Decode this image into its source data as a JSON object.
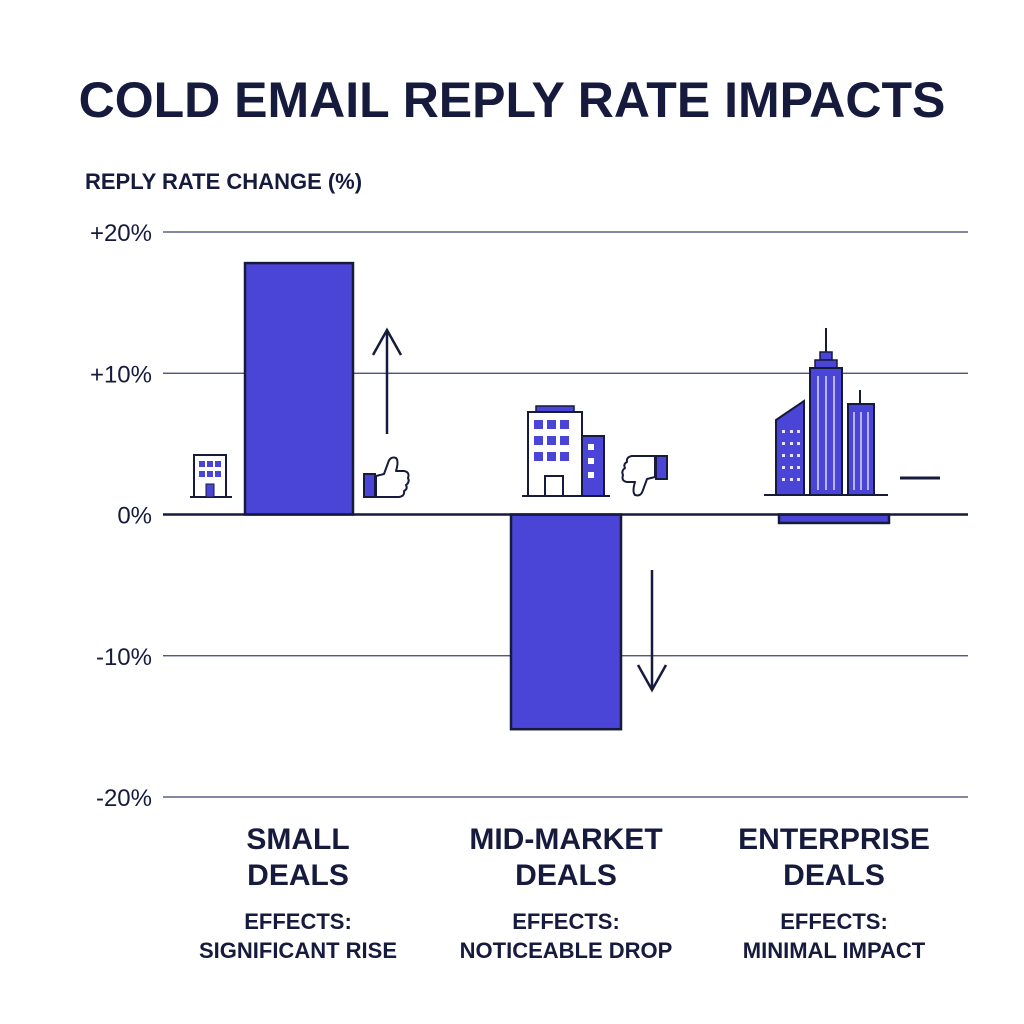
{
  "chart_data": {
    "type": "bar",
    "title": "COLD EMAIL REPLY RATE IMPACTS",
    "ylabel": "REPLY RATE CHANGE (%)",
    "xlabel": "",
    "ylim": [
      -20,
      20
    ],
    "yticks": [
      20,
      10,
      0,
      -10,
      -20
    ],
    "ytick_labels": [
      "+20%",
      "+10%",
      "0%",
      "-10%",
      "-20%"
    ],
    "grid": true,
    "legend": "none",
    "categories": [
      {
        "line1": "SMALL",
        "line2": "DEALS",
        "effect_line1": "EFFECTS:",
        "effect_line2": "SIGNIFICANT RISE",
        "icon": "small-building-icon",
        "indicator": "thumbs-up-icon",
        "arrow": "up"
      },
      {
        "line1": "MID-MARKET",
        "line2": "DEALS",
        "effect_line1": "EFFECTS:",
        "effect_line2": "NOTICEABLE DROP",
        "icon": "office-building-icon",
        "indicator": "thumbs-down-icon",
        "arrow": "down"
      },
      {
        "line1": "ENTERPRISE",
        "line2": "DEALS",
        "effect_line1": "EFFECTS:",
        "effect_line2": "MINIMAL IMPACT",
        "icon": "skyscraper-icon",
        "indicator": "dash-icon",
        "arrow": "none"
      }
    ],
    "values": [
      17.8,
      -15.2,
      -0.6
    ],
    "colors": {
      "bar": "#4a45d6",
      "outline": "#161a3d",
      "grid": "#3a3f72",
      "text": "#161a3d"
    }
  }
}
